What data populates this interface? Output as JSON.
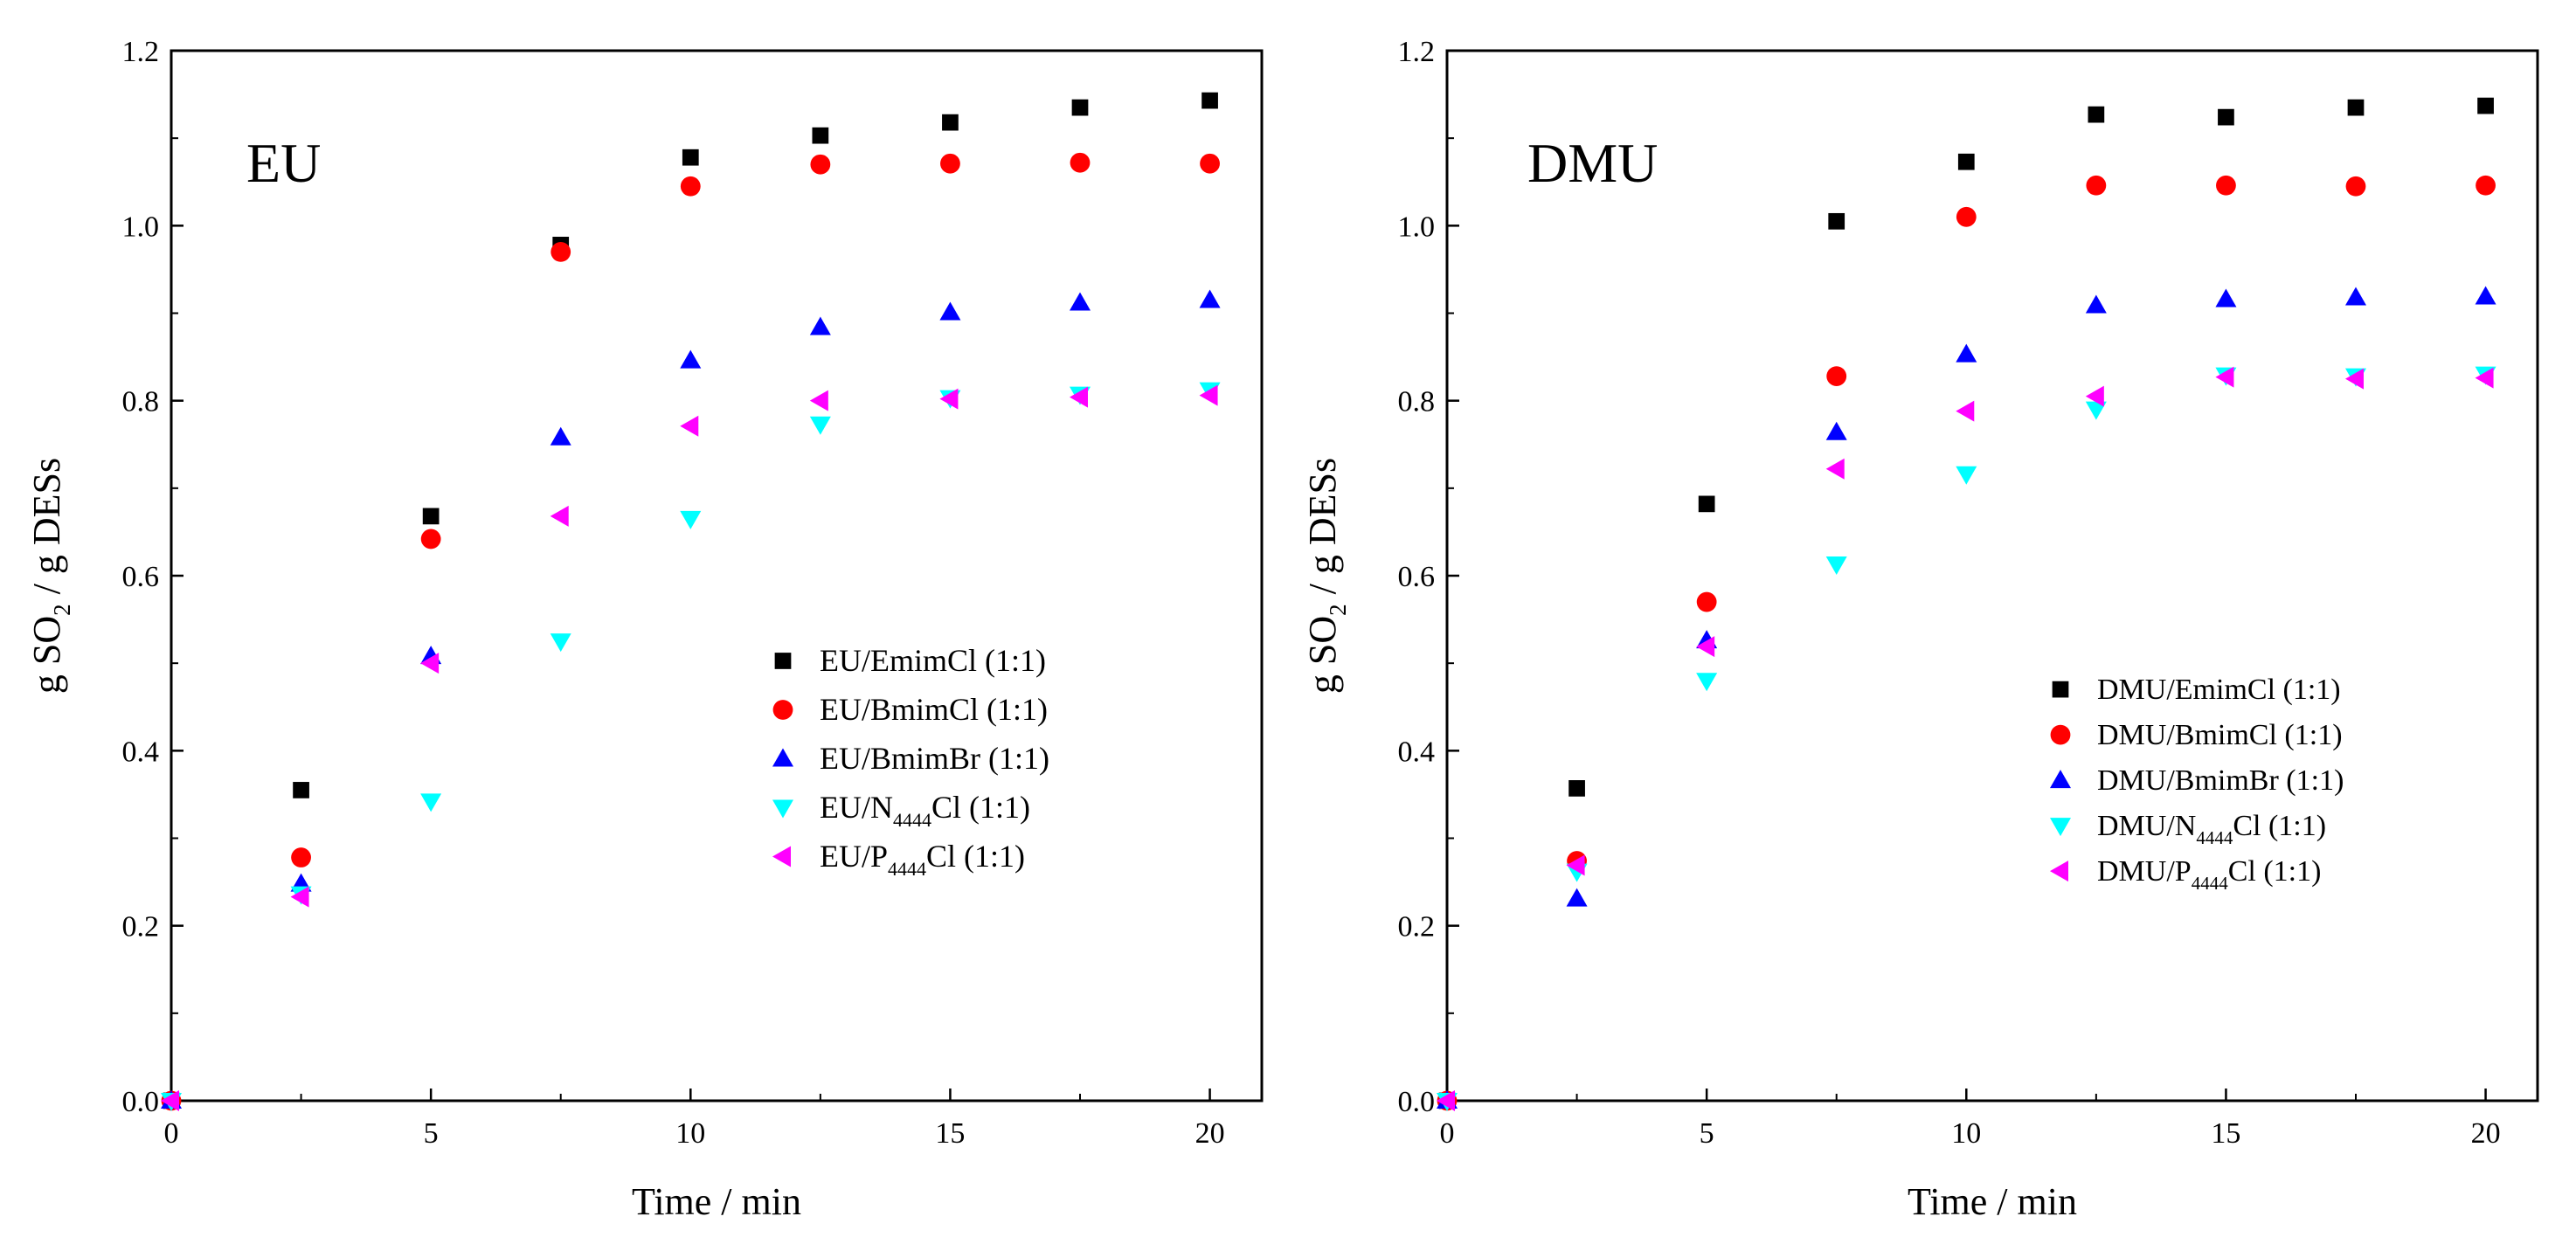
{
  "chart_data": [
    {
      "type": "scatter",
      "panel_label": "EU",
      "xlabel": "Time / min",
      "ylabel_parts": {
        "pre": "g SO",
        "sub": "2",
        "post": " / g DESs"
      },
      "xlim": [
        0,
        21
      ],
      "ylim": [
        0,
        1.2
      ],
      "xticks": [
        0,
        5,
        10,
        15,
        20
      ],
      "xtick_labels": [
        "0",
        "5",
        "10",
        "15",
        "20"
      ],
      "yticks": [
        0,
        0.2,
        0.4,
        0.6,
        0.8,
        1.0,
        1.2
      ],
      "ytick_labels": [
        "0.0",
        "0.2",
        "0.4",
        "0.6",
        "0.8",
        "1.0",
        "1.2"
      ],
      "grid": false,
      "legend_position": "center-right",
      "x": [
        0,
        2.5,
        5,
        7.5,
        10,
        12.5,
        15,
        17.5,
        20
      ],
      "series": [
        {
          "name": "EU/EmimCl (1:1)",
          "label_parts": {
            "pre": "EU/EmimCl (1:1)",
            "sub": "",
            "post": ""
          },
          "marker": "square",
          "color": "#000000",
          "values": [
            0,
            0.355,
            0.668,
            0.978,
            1.078,
            1.103,
            1.118,
            1.135,
            1.143
          ]
        },
        {
          "name": "EU/BmimCl (1:1)",
          "label_parts": {
            "pre": "EU/BmimCl (1:1)",
            "sub": "",
            "post": ""
          },
          "marker": "circle",
          "color": "#ff0000",
          "values": [
            0,
            0.278,
            0.642,
            0.97,
            1.045,
            1.07,
            1.071,
            1.072,
            1.071
          ]
        },
        {
          "name": "EU/BmimBr (1:1)",
          "label_parts": {
            "pre": "EU/BmimBr (1:1)",
            "sub": "",
            "post": ""
          },
          "marker": "triangle-up",
          "color": "#0000ff",
          "values": [
            0,
            0.248,
            0.508,
            0.758,
            0.846,
            0.884,
            0.901,
            0.912,
            0.915
          ]
        },
        {
          "name": "EU/N4444Cl (1:1)",
          "label_parts": {
            "pre": "EU/N",
            "sub": "4444",
            "post": "Cl (1:1)"
          },
          "marker": "triangle-down",
          "color": "#00ffff",
          "values": [
            0,
            0.236,
            0.342,
            0.525,
            0.665,
            0.773,
            0.803,
            0.807,
            0.812
          ]
        },
        {
          "name": "EU/P4444Cl (1:1)",
          "label_parts": {
            "pre": "EU/P",
            "sub": "4444",
            "post": "Cl (1:1)"
          },
          "marker": "triangle-left",
          "color": "#ff00ff",
          "values": [
            0,
            0.233,
            0.5,
            0.668,
            0.771,
            0.8,
            0.802,
            0.804,
            0.806
          ]
        }
      ]
    },
    {
      "type": "scatter",
      "panel_label": "DMU",
      "xlabel": "Time / min",
      "ylabel_parts": {
        "pre": "g SO",
        "sub": "2",
        "post": " / g DESs"
      },
      "xlim": [
        0,
        21
      ],
      "ylim": [
        0,
        1.2
      ],
      "xticks": [
        0,
        5,
        10,
        15,
        20
      ],
      "xtick_labels": [
        "0",
        "5",
        "10",
        "15",
        "20"
      ],
      "yticks": [
        0,
        0.2,
        0.4,
        0.6,
        0.8,
        1.0,
        1.2
      ],
      "ytick_labels": [
        "0.0",
        "0.2",
        "0.4",
        "0.6",
        "0.8",
        "1.0",
        "1.2"
      ],
      "grid": false,
      "legend_position": "center-right",
      "x": [
        0,
        2.5,
        5,
        7.5,
        10,
        12.5,
        15,
        17.5,
        20
      ],
      "series": [
        {
          "name": "DMU/EmimCl (1:1)",
          "label_parts": {
            "pre": "DMU/EmimCl (1:1)",
            "sub": "",
            "post": ""
          },
          "marker": "square",
          "color": "#000000",
          "values": [
            0,
            0.357,
            0.682,
            1.005,
            1.073,
            1.127,
            1.124,
            1.135,
            1.137
          ]
        },
        {
          "name": "DMU/BmimCl (1:1)",
          "label_parts": {
            "pre": "DMU/BmimCl (1:1)",
            "sub": "",
            "post": ""
          },
          "marker": "circle",
          "color": "#ff0000",
          "values": [
            0,
            0.274,
            0.57,
            0.828,
            1.01,
            1.046,
            1.046,
            1.045,
            1.046
          ]
        },
        {
          "name": "DMU/BmimBr (1:1)",
          "label_parts": {
            "pre": "DMU/BmimBr (1:1)",
            "sub": "",
            "post": ""
          },
          "marker": "triangle-up",
          "color": "#0000ff",
          "values": [
            0,
            0.231,
            0.526,
            0.764,
            0.853,
            0.909,
            0.916,
            0.918,
            0.919
          ]
        },
        {
          "name": "DMU/N4444Cl (1:1)",
          "label_parts": {
            "pre": "DMU/N",
            "sub": "4444",
            "post": "Cl (1:1)"
          },
          "marker": "triangle-down",
          "color": "#00ffff",
          "values": [
            0,
            0.262,
            0.48,
            0.613,
            0.716,
            0.79,
            0.829,
            0.828,
            0.83
          ]
        },
        {
          "name": "DMU/P4444Cl (1:1)",
          "label_parts": {
            "pre": "DMU/P",
            "sub": "4444",
            "post": "Cl (1:1)"
          },
          "marker": "triangle-left",
          "color": "#ff00ff",
          "values": [
            0,
            0.269,
            0.519,
            0.722,
            0.788,
            0.805,
            0.827,
            0.825,
            0.826
          ]
        }
      ]
    }
  ]
}
